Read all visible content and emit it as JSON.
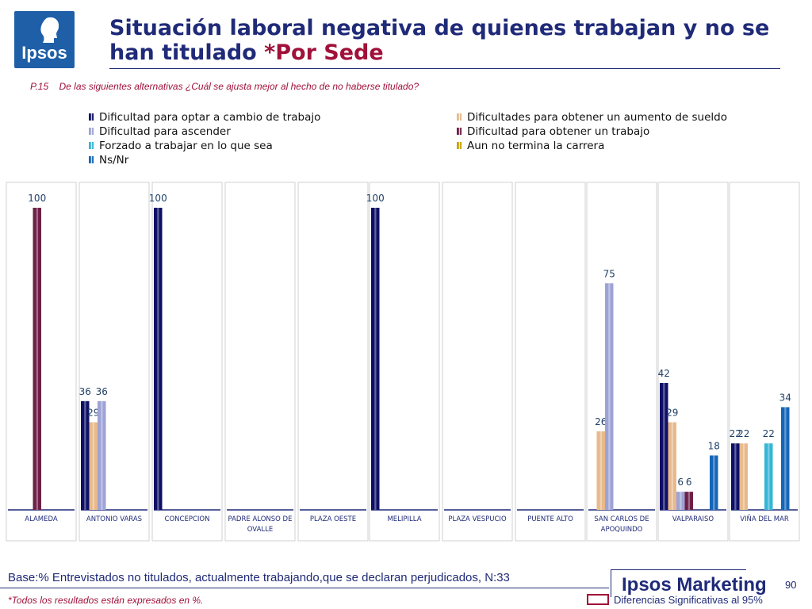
{
  "header": {
    "logo_text": "Ipsos",
    "title_main": "Situación laboral negativa de quienes trabajan y no se han titulado ",
    "title_accent": "*Por Sede"
  },
  "question": {
    "number": "P.15",
    "text": "De las siguientes alternativas ¿Cuál se ajusta mejor al hecho de no haberse titulado?"
  },
  "colors": {
    "title": "#1f2a78",
    "accent": "#a0113a",
    "series": [
      "#0d1066",
      "#e8b98a",
      "#9ea3d6",
      "#6e1f47",
      "#35b6d6",
      "#c9a100",
      "#1565b8"
    ]
  },
  "chart_data": {
    "type": "bar",
    "categories": [
      "ALAMEDA",
      "ANTONIO VARAS",
      "CONCEPCION",
      "PADRE ALONSO DE OVALLE",
      "PLAZA OESTE",
      "MELIPILLA",
      "PLAZA VESPUCIO",
      "PUENTE ALTO",
      "SAN CARLOS DE APOQUINDO",
      "VALPARAISO",
      "VIÑA DEL MAR"
    ],
    "ylim": [
      0,
      100
    ],
    "grid": false,
    "legend_position": "top",
    "series": [
      {
        "name": "Dificultad para optar a cambio de trabajo",
        "values": [
          null,
          36,
          100,
          null,
          null,
          100,
          null,
          null,
          null,
          42,
          22
        ]
      },
      {
        "name": "Dificultades para obtener un aumento de sueldo",
        "values": [
          null,
          29,
          null,
          null,
          null,
          null,
          null,
          null,
          26,
          29,
          22
        ]
      },
      {
        "name": "Dificultad para ascender",
        "values": [
          null,
          36,
          null,
          null,
          null,
          null,
          null,
          null,
          75,
          6,
          null
        ]
      },
      {
        "name": "Dificultad para obtener un trabajo",
        "values": [
          100,
          null,
          null,
          null,
          null,
          null,
          null,
          null,
          null,
          6,
          null
        ]
      },
      {
        "name": "Forzado a trabajar en lo que sea",
        "values": [
          null,
          null,
          null,
          null,
          null,
          null,
          null,
          null,
          null,
          null,
          22
        ]
      },
      {
        "name": "Aun no termina la carrera",
        "values": [
          null,
          null,
          null,
          null,
          null,
          null,
          null,
          null,
          null,
          null,
          null
        ]
      },
      {
        "name": "Ns/Nr",
        "values": [
          null,
          null,
          null,
          null,
          null,
          null,
          null,
          null,
          null,
          18,
          34
        ]
      }
    ]
  },
  "footer": {
    "base": "Base:% Entrevistados no titulados, actualmente trabajando,que se declaran perjudicados, N:33",
    "note": "*Todos los resultados están expresados en %.",
    "brand": "Ipsos Marketing",
    "page_number": "90",
    "significance_label": "Diferencias Significativas al 95%"
  }
}
